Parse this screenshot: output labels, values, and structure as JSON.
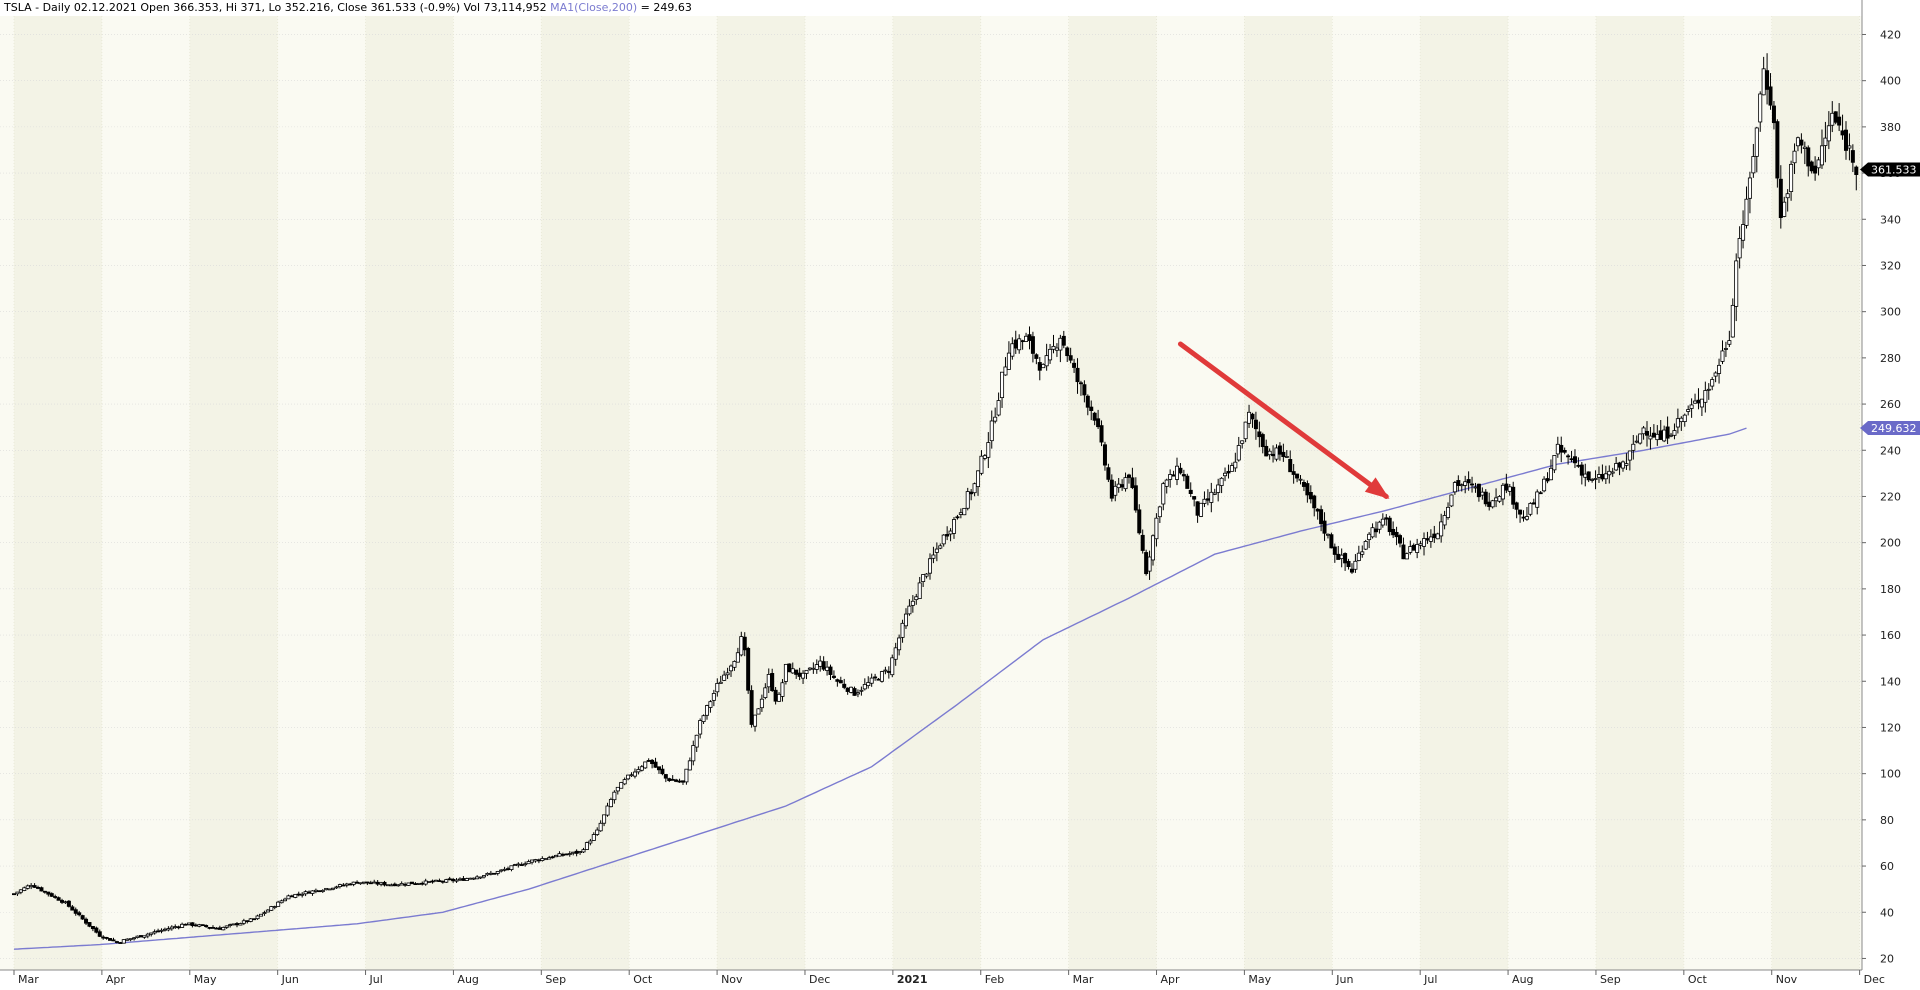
{
  "header": {
    "symbol_line": "TSLA - Daily 02.12.2021 Open 366.353, Hi 371, Lo 352.216, Close 361.533 (-0.9%) Vol 73,114,952",
    "ma_label": "MA1(Close,200)",
    "ma_value": " = 249.63"
  },
  "colors": {
    "background": "#ffffff",
    "band_a": "#f3f3e6",
    "band_b": "#fafaf2",
    "grid": "#d9d9d9",
    "candle": "#000000",
    "ma_line": "#7b7bd0",
    "arrow": "#e03a3a",
    "last_price_bg": "#000000",
    "ma_tag_bg": "#6a6ac8"
  },
  "chart_data": {
    "type": "candlestick",
    "y_scale": "linear",
    "ylim": [
      15,
      428
    ],
    "y_ticks": [
      20,
      40,
      60,
      80,
      100,
      120,
      140,
      160,
      180,
      200,
      220,
      240,
      260,
      280,
      300,
      320,
      340,
      360,
      380,
      400,
      420
    ],
    "x_labels": [
      {
        "label": "Mar",
        "bold": false
      },
      {
        "label": "Apr",
        "bold": false
      },
      {
        "label": "May",
        "bold": false
      },
      {
        "label": "Jun",
        "bold": false
      },
      {
        "label": "Jul",
        "bold": false
      },
      {
        "label": "Aug",
        "bold": false
      },
      {
        "label": "Sep",
        "bold": false
      },
      {
        "label": "Oct",
        "bold": false
      },
      {
        "label": "Nov",
        "bold": false
      },
      {
        "label": "Dec",
        "bold": false
      },
      {
        "label": "2021",
        "bold": true
      },
      {
        "label": "Feb",
        "bold": false
      },
      {
        "label": "Mar",
        "bold": false
      },
      {
        "label": "Apr",
        "bold": false
      },
      {
        "label": "May",
        "bold": false
      },
      {
        "label": "Jun",
        "bold": false
      },
      {
        "label": "Jul",
        "bold": false
      },
      {
        "label": "Aug",
        "bold": false
      },
      {
        "label": "Sep",
        "bold": false
      },
      {
        "label": "Oct",
        "bold": false
      },
      {
        "label": "Nov",
        "bold": false
      },
      {
        "label": "Dec",
        "bold": false
      }
    ],
    "price_anchors": [
      [
        0,
        48
      ],
      [
        1,
        52
      ],
      [
        3,
        44
      ],
      [
        5,
        30
      ],
      [
        6,
        27
      ],
      [
        8,
        31
      ],
      [
        10,
        35
      ],
      [
        12,
        33
      ],
      [
        14,
        37
      ],
      [
        16,
        47
      ],
      [
        18,
        50
      ],
      [
        20,
        53
      ],
      [
        22,
        52
      ],
      [
        24,
        53
      ],
      [
        26,
        54
      ],
      [
        28,
        57
      ],
      [
        30,
        62
      ],
      [
        32,
        65
      ],
      [
        33,
        66
      ],
      [
        34,
        75
      ],
      [
        35,
        92
      ],
      [
        36,
        100
      ],
      [
        37,
        106
      ],
      [
        38,
        98
      ],
      [
        39,
        96
      ],
      [
        40,
        122
      ],
      [
        41,
        138
      ],
      [
        42,
        150
      ],
      [
        42.5,
        160
      ],
      [
        43,
        120
      ],
      [
        44,
        142
      ],
      [
        44.5,
        130
      ],
      [
        45,
        146
      ],
      [
        46,
        142
      ],
      [
        47,
        148
      ],
      [
        48,
        140
      ],
      [
        49,
        135
      ],
      [
        50,
        140
      ],
      [
        51,
        145
      ],
      [
        52,
        168
      ],
      [
        53,
        185
      ],
      [
        54,
        200
      ],
      [
        55,
        212
      ],
      [
        56,
        225
      ],
      [
        57,
        250
      ],
      [
        58,
        285
      ],
      [
        59,
        288
      ],
      [
        60,
        275
      ],
      [
        61,
        290
      ],
      [
        62,
        270
      ],
      [
        63,
        255
      ],
      [
        64,
        220
      ],
      [
        65,
        230
      ],
      [
        66,
        188
      ],
      [
        67,
        225
      ],
      [
        68,
        232
      ],
      [
        69,
        213
      ],
      [
        70,
        222
      ],
      [
        71,
        232
      ],
      [
        72,
        255
      ],
      [
        73,
        240
      ],
      [
        74,
        238
      ],
      [
        75,
        225
      ],
      [
        76,
        212
      ],
      [
        77,
        196
      ],
      [
        78,
        188
      ],
      [
        79,
        205
      ],
      [
        80,
        209
      ],
      [
        81,
        195
      ],
      [
        82,
        200
      ],
      [
        83,
        205
      ],
      [
        84,
        226
      ],
      [
        85,
        224
      ],
      [
        86,
        218
      ],
      [
        87,
        225
      ],
      [
        88,
        210
      ],
      [
        89,
        222
      ],
      [
        90,
        240
      ],
      [
        91,
        235
      ],
      [
        92,
        226
      ],
      [
        93,
        230
      ],
      [
        94,
        235
      ],
      [
        95,
        250
      ],
      [
        96,
        245
      ],
      [
        97,
        252
      ],
      [
        98,
        260
      ],
      [
        99,
        270
      ],
      [
        100,
        290
      ],
      [
        100.5,
        330
      ],
      [
        101,
        345
      ],
      [
        102,
        405
      ],
      [
        102.5,
        390
      ],
      [
        103,
        340
      ],
      [
        104,
        375
      ],
      [
        105,
        360
      ],
      [
        106,
        385
      ],
      [
        107,
        370
      ],
      [
        107.5,
        361.5
      ]
    ],
    "ma200_anchors": [
      [
        0,
        24
      ],
      [
        5,
        26
      ],
      [
        10,
        29
      ],
      [
        15,
        32
      ],
      [
        20,
        35
      ],
      [
        25,
        40
      ],
      [
        30,
        50
      ],
      [
        35,
        62
      ],
      [
        40,
        74
      ],
      [
        45,
        86
      ],
      [
        50,
        103
      ],
      [
        55,
        130
      ],
      [
        60,
        158
      ],
      [
        65,
        176
      ],
      [
        70,
        195
      ],
      [
        75,
        205
      ],
      [
        80,
        214
      ],
      [
        85,
        224
      ],
      [
        90,
        234
      ],
      [
        95,
        240
      ],
      [
        100,
        247
      ],
      [
        101,
        249.6
      ]
    ],
    "last_price_tag": "361.533",
    "ma_tag": "249.632",
    "annotations": [
      {
        "type": "arrow",
        "from": [
          68,
          286
        ],
        "to": [
          80,
          220
        ]
      }
    ]
  }
}
